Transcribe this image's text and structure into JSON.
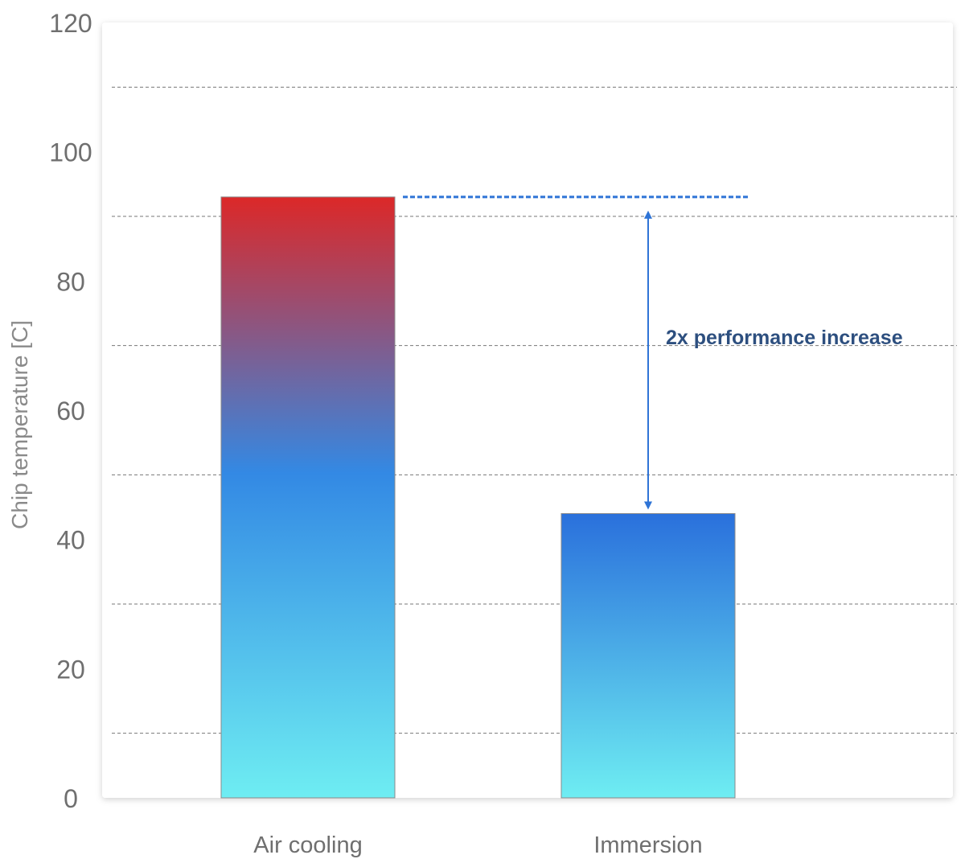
{
  "chart_data": {
    "type": "bar",
    "categories": [
      "Air cooling",
      "Immersion"
    ],
    "values": [
      93,
      44
    ],
    "title": "",
    "xlabel": "",
    "ylabel": "Chip temperature [C]",
    "ylim": [
      0,
      120
    ],
    "yticks": [
      0,
      20,
      40,
      60,
      80,
      100,
      120
    ],
    "grid": true,
    "annotation": {
      "text": "2x performance increase",
      "from_value": 93,
      "to_value": 44
    },
    "colors": {
      "bar_top_hot": "#dc2828",
      "bar_mid": "#3389e4",
      "bar_bottom": "#6eedf2",
      "immersion_top": "#2a70dc",
      "arrow": "#2f74d6",
      "annotation_text": "#2d4f7f",
      "grid": "#777777"
    }
  }
}
